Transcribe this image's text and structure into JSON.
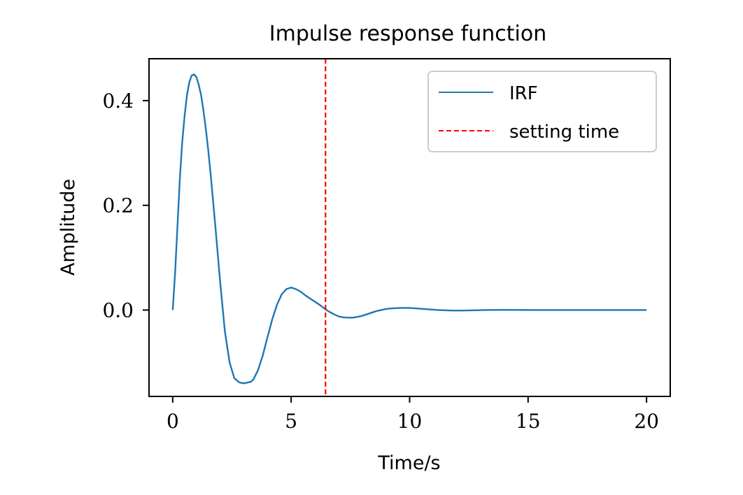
{
  "chart_data": {
    "type": "line",
    "title": "Impulse response function",
    "xlabel": "Time/s",
    "ylabel": "Amplitude",
    "xlim": [
      -1,
      21
    ],
    "ylim": [
      -0.165,
      0.48
    ],
    "xticks": [
      0,
      5,
      10,
      15,
      20
    ],
    "xtick_labels": [
      "0",
      "5",
      "10",
      "15",
      "20"
    ],
    "yticks": [
      0.0,
      0.2,
      0.4
    ],
    "ytick_labels": [
      "0.0",
      "0.2",
      "0.4"
    ],
    "grid": false,
    "legend_position": "top-right",
    "series": [
      {
        "name": "IRF",
        "style": "solid",
        "color": "#1f77b4",
        "x": [
          0,
          0.1,
          0.2,
          0.3,
          0.4,
          0.5,
          0.6,
          0.7,
          0.8,
          0.9,
          1.0,
          1.1,
          1.2,
          1.3,
          1.4,
          1.5,
          1.6,
          1.8,
          2.0,
          2.2,
          2.4,
          2.6,
          2.8,
          3.0,
          3.2,
          3.3,
          3.4,
          3.6,
          3.8,
          4.0,
          4.2,
          4.4,
          4.6,
          4.8,
          5.0,
          5.2,
          5.4,
          5.6,
          5.8,
          6.0,
          6.2,
          6.4,
          6.6,
          6.8,
          7.0,
          7.2,
          7.4,
          7.6,
          7.8,
          8.0,
          8.2,
          8.4,
          8.6,
          8.8,
          9.0,
          9.2,
          9.4,
          9.6,
          9.8,
          10.0,
          10.3,
          10.6,
          10.9,
          11.2,
          11.5,
          11.8,
          12.1,
          12.4,
          12.8,
          13.2,
          13.6,
          14.0,
          14.5,
          15.0,
          15.5,
          16.0,
          16.5,
          17.0,
          17.5,
          18.0,
          18.5,
          19.0,
          19.5,
          20.0
        ],
        "y": [
          0,
          0.07,
          0.16,
          0.25,
          0.32,
          0.37,
          0.41,
          0.435,
          0.448,
          0.45,
          0.445,
          0.43,
          0.41,
          0.38,
          0.345,
          0.305,
          0.26,
          0.16,
          0.055,
          -0.04,
          -0.1,
          -0.13,
          -0.138,
          -0.14,
          -0.138,
          -0.137,
          -0.133,
          -0.115,
          -0.087,
          -0.052,
          -0.018,
          0.01,
          0.03,
          0.04,
          0.043,
          0.04,
          0.035,
          0.028,
          0.022,
          0.016,
          0.01,
          0.003,
          -0.003,
          -0.008,
          -0.012,
          -0.014,
          -0.0145,
          -0.0145,
          -0.013,
          -0.011,
          -0.008,
          -0.005,
          -0.002,
          0.0,
          0.002,
          0.003,
          0.0035,
          0.004,
          0.004,
          0.004,
          0.003,
          0.002,
          0.001,
          0.0,
          -0.0005,
          -0.001,
          -0.001,
          -0.0008,
          -0.0005,
          0.0,
          0.0002,
          0.0003,
          0.0002,
          0.0001,
          0.0,
          0.0,
          0.0,
          0.0,
          0.0,
          0.0,
          0.0,
          0.0,
          0.0,
          0.0
        ]
      },
      {
        "name": "setting time",
        "style": "dashed",
        "color": "#ff0000",
        "vline_x": 6.45
      }
    ]
  }
}
